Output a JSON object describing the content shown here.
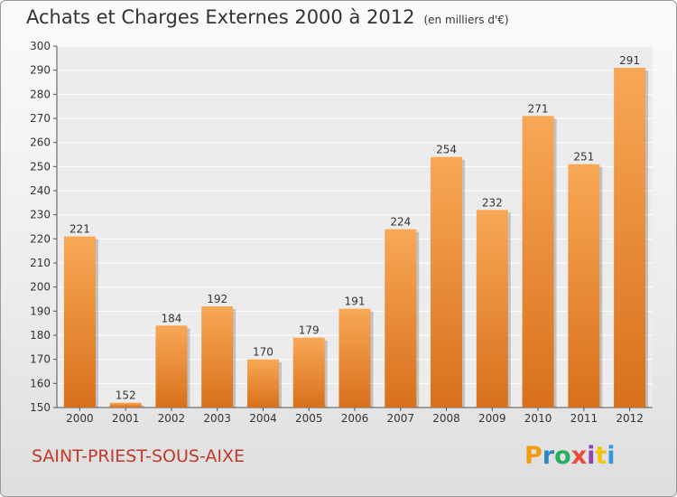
{
  "header": {
    "title": "Achats et Charges Externes 2000 à 2012",
    "unit": "(en milliers d'€)"
  },
  "footer": {
    "commune": "SAINT-PRIEST-SOUS-AIXE",
    "logo_text": "Proxiti",
    "logo_colors": [
      "#f39c12",
      "#2e86c1",
      "#27ae60",
      "#e74c3c",
      "#8e44ad",
      "#f1c40f",
      "#3498db"
    ]
  },
  "colors": {
    "bar_top": "#f8a856",
    "bar_bottom": "#d8701c",
    "commune": "#c0392b"
  },
  "chart_data": {
    "type": "bar",
    "title": "Achats et Charges Externes 2000 à 2012",
    "subtitle": "(en milliers d'€)",
    "xlabel": "",
    "ylabel": "",
    "categories": [
      "2000",
      "2001",
      "2002",
      "2003",
      "2004",
      "2005",
      "2006",
      "2007",
      "2008",
      "2009",
      "2010",
      "2011",
      "2012"
    ],
    "values": [
      221,
      152,
      184,
      192,
      170,
      179,
      191,
      224,
      254,
      232,
      271,
      251,
      291
    ],
    "ylim": [
      150,
      300
    ],
    "yticks": [
      150,
      160,
      170,
      180,
      190,
      200,
      210,
      220,
      230,
      240,
      250,
      260,
      270,
      280,
      290,
      300
    ],
    "grid": true,
    "legend": "none"
  }
}
